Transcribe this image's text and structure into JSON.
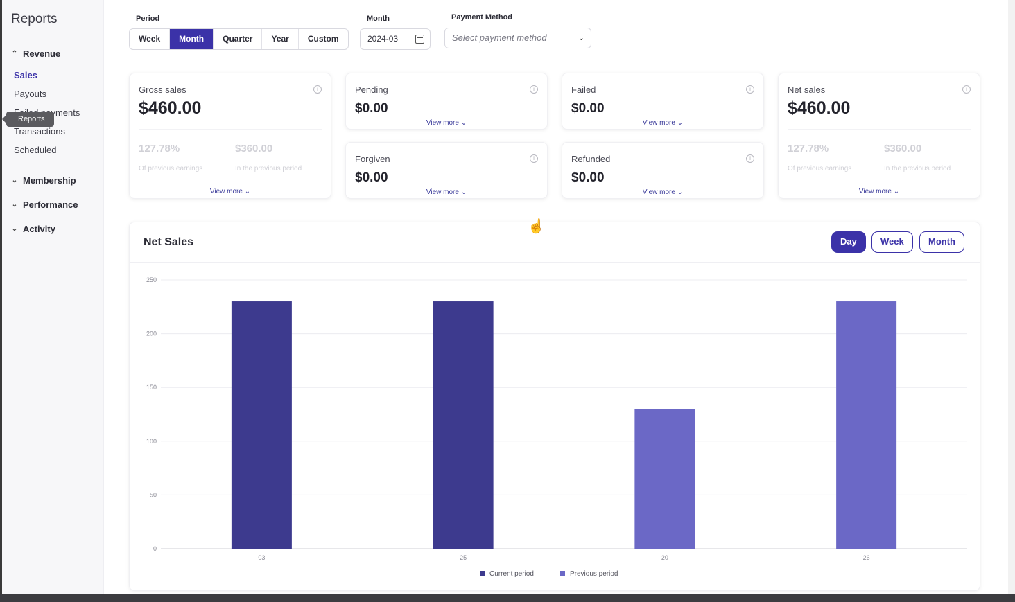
{
  "sidebar": {
    "title": "Reports",
    "groups": [
      {
        "label": "Revenue",
        "expanded": true
      },
      {
        "label": "Membership",
        "expanded": false
      },
      {
        "label": "Performance",
        "expanded": false
      },
      {
        "label": "Activity",
        "expanded": false
      }
    ],
    "revenue_items": [
      "Sales",
      "Payouts",
      "Failed payments",
      "Transactions",
      "Scheduled"
    ],
    "active_item": "Sales",
    "tooltip": "Reports"
  },
  "filters": {
    "period_label": "Period",
    "period_options": [
      "Week",
      "Month",
      "Quarter",
      "Year",
      "Custom"
    ],
    "period_selected": "Month",
    "month_label": "Month",
    "month_value": "2024-03",
    "payment_label": "Payment Method",
    "payment_placeholder": "Select payment method"
  },
  "cards": {
    "gross": {
      "label": "Gross sales",
      "value": "$460.00",
      "pct": "127.78%",
      "pct_sub": "Of previous earnings",
      "prev": "$360.00",
      "prev_sub": "In the previous period",
      "more": "View more"
    },
    "pending": {
      "label": "Pending",
      "value": "$0.00",
      "more": "View more"
    },
    "failed": {
      "label": "Failed",
      "value": "$0.00",
      "more": "View more"
    },
    "forgiven": {
      "label": "Forgiven",
      "value": "$0.00",
      "more": "View more"
    },
    "refunded": {
      "label": "Refunded",
      "value": "$0.00",
      "more": "View more"
    },
    "net": {
      "label": "Net sales",
      "value": "$460.00",
      "pct": "127.78%",
      "pct_sub": "Of previous earnings",
      "prev": "$360.00",
      "prev_sub": "In the previous period",
      "more": "View more"
    }
  },
  "chart": {
    "title": "Net Sales",
    "toggles": [
      "Day",
      "Week",
      "Month"
    ],
    "toggle_selected": "Day"
  },
  "colors": {
    "accent": "#3b32a8",
    "current": "#3d3a8e",
    "previous": "#6b68c6"
  },
  "chart_data": {
    "type": "bar",
    "categories": [
      "03",
      "25",
      "20",
      "26"
    ],
    "series": [
      {
        "name": "Current period",
        "values": [
          230,
          230,
          null,
          null
        ]
      },
      {
        "name": "Previous period",
        "values": [
          null,
          null,
          130,
          230
        ]
      }
    ],
    "ylim": [
      0,
      250
    ],
    "yticks": [
      0,
      50,
      100,
      150,
      200,
      250
    ],
    "grid": true,
    "legend": "bottom"
  }
}
